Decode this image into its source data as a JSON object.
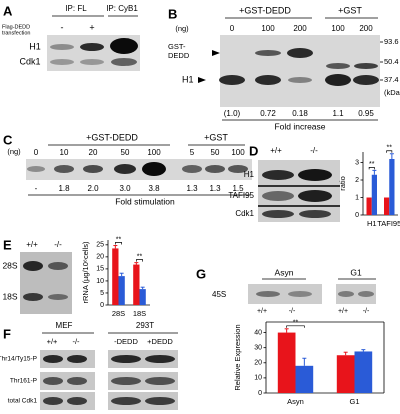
{
  "panels": {
    "A": {
      "letter": "A",
      "ip_labels": [
        "IP: FL",
        "IP: CyB1"
      ],
      "transfection_label": [
        "Flag-DEDD",
        "transfection"
      ],
      "lanes": [
        "-",
        "+"
      ],
      "rows": [
        "H1",
        "Cdk1"
      ]
    },
    "B": {
      "letter": "B",
      "groups": [
        "+GST-DEDD",
        "+GST"
      ],
      "unit": "(ng)",
      "amounts": [
        "0",
        "100",
        "200",
        "100",
        "200"
      ],
      "band_labels": [
        "GST-",
        "DEDD",
        "H1"
      ],
      "markers": [
        "93.6",
        "50.4",
        "37.4",
        "(kDa)"
      ],
      "fold": [
        "(1.0)",
        "0.72",
        "0.18",
        "1.1",
        "0.95"
      ],
      "fold_label": "Fold increase"
    },
    "C": {
      "letter": "C",
      "groups": [
        "+GST-DEDD",
        "+GST"
      ],
      "unit": "(ng)",
      "amounts": [
        "0",
        "10",
        "20",
        "50",
        "100",
        "5",
        "50",
        "100"
      ],
      "fold": [
        "-",
        "1.8",
        "2.0",
        "3.0",
        "3.8",
        "1.3",
        "1.3",
        "1.5"
      ],
      "fold_label": "Fold stimulation"
    },
    "D": {
      "letter": "D",
      "lanes": [
        "+/+",
        "-/-"
      ],
      "rows": [
        "H1",
        "TAFI95",
        "Cdk1"
      ]
    },
    "E": {
      "letter": "E",
      "lanes": [
        "+/+",
        "-/-"
      ],
      "rows": [
        "28S",
        "18S"
      ]
    },
    "F": {
      "letter": "F",
      "groups": [
        "MEF",
        "293T"
      ],
      "lanes": [
        "+/+",
        "-/-",
        "-DEDD",
        "+DEDD"
      ],
      "rows": [
        "Thr14/Ty15-P",
        "Thr161-P",
        "total Cdk1"
      ]
    },
    "G": {
      "letter": "G",
      "groups": [
        "Asyn",
        "G1"
      ],
      "row": "45S",
      "lanes": [
        "+/+",
        "-/-",
        "+/+",
        "-/-"
      ]
    }
  },
  "chart_data": [
    {
      "type": "bar",
      "y_label": "ratio",
      "categories": [
        "H1",
        "TAFI95"
      ],
      "ylim": [
        0,
        3.6
      ],
      "yticks": [
        0,
        1,
        2,
        3
      ],
      "series": [
        {
          "color": "#e8141b",
          "values": [
            1,
            1
          ]
        },
        {
          "color": "#2a5bd7",
          "values": [
            2.3,
            3.2
          ],
          "errors": [
            0.25,
            0.3
          ]
        }
      ],
      "significance": [
        "**",
        "**"
      ]
    },
    {
      "type": "bar",
      "y_label": "rRNA (µg/10⁶cells)",
      "categories": [
        "28S",
        "18S"
      ],
      "ylim": [
        0,
        27
      ],
      "yticks": [
        0,
        5,
        10,
        15,
        20,
        25
      ],
      "series": [
        {
          "color": "#e8141b",
          "values": [
            23.5,
            16.8
          ],
          "errors": [
            1.2,
            0.8
          ]
        },
        {
          "color": "#2a5bd7",
          "values": [
            12,
            6.6
          ],
          "errors": [
            1.2,
            0.8
          ]
        }
      ],
      "significance": [
        "**",
        "**"
      ]
    },
    {
      "type": "bar",
      "y_label": "Relative Expression",
      "categories": [
        "Asyn",
        "G1"
      ],
      "ylim": [
        0,
        47
      ],
      "yticks": [
        0,
        10,
        20,
        30,
        40
      ],
      "series": [
        {
          "color": "#e8141b",
          "values": [
            40,
            25
          ],
          "errors": [
            2.5,
            2
          ]
        },
        {
          "color": "#2a5bd7",
          "values": [
            18,
            27.5
          ],
          "errors": [
            5,
            1.2
          ]
        }
      ],
      "significance": [
        "**",
        null
      ]
    }
  ]
}
